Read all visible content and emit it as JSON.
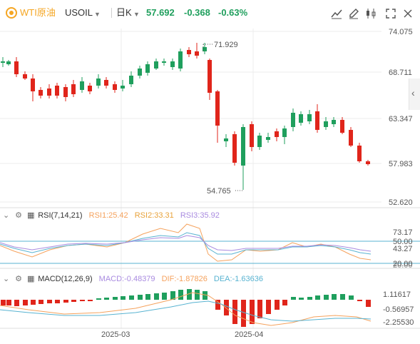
{
  "header": {
    "symbol_name": "WTI原油",
    "symbol_code": "USOIL",
    "interval": "日K",
    "price": "57.692",
    "change": "-0.368",
    "change_pct": "-0.63%"
  },
  "toolbar_icons": [
    "trend-line-icon",
    "pencil-icon",
    "candle-type-icon",
    "fullscreen-icon",
    "settings-icon"
  ],
  "colors": {
    "up": "#1f9f5d",
    "down": "#e0251b",
    "rsi1": "#f5a25d",
    "rsi2": "#58b3d1",
    "rsi3": "#a98be0",
    "dif": "#f5a25d",
    "dea": "#58b3d1",
    "brand": "#f5a623"
  },
  "price_axis": [
    "74.075",
    "68.711",
    "63.347",
    "57.983",
    "52.620"
  ],
  "annotations": {
    "high": "71.929",
    "low": "54.765"
  },
  "rsi": {
    "title": "RSI(7,14,21)",
    "rsi1": "RSI1:25.42",
    "rsi2": "RSI2:33.31",
    "rsi3": "RSI3:35.92",
    "axis": [
      "73.17",
      "50.00",
      "43.27",
      "20.00",
      "20.00"
    ]
  },
  "macd": {
    "title": "MACD(12,26,9)",
    "macd": "MACD:-0.48379",
    "dif": "DIF:-1.87826",
    "dea": "DEA:-1.63636",
    "axis": [
      "1.11617",
      "-0.56957",
      "-2.25530"
    ]
  },
  "x_axis": [
    "2025-03",
    "2025-04"
  ]
}
